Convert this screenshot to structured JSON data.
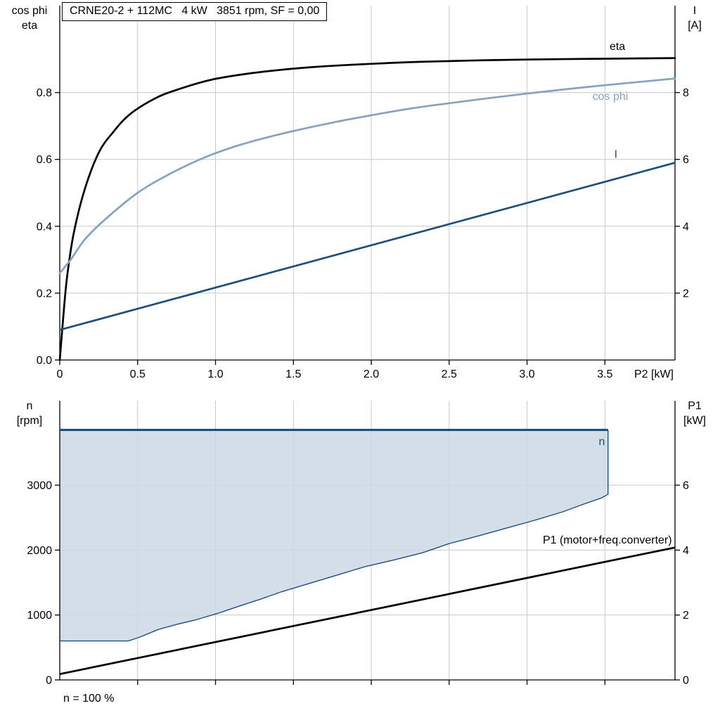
{
  "colors": {
    "black": "#000000",
    "dark_blue": "#1d4f7c",
    "light_blue": "#87a2be",
    "grid": "#c9c9c9",
    "area_fill": "#ccd8e4"
  },
  "chart_data": [
    {
      "type": "line",
      "title": "CRNE20-2 + 112MC   4 kW   3851 rpm, SF = 0,00",
      "x_axis": {
        "label": "P2 [kW]",
        "min": 0,
        "max": 3.95,
        "ticks": [
          0,
          0.5,
          1,
          1.5,
          2,
          2.5,
          3,
          3.5
        ],
        "tick_labels": [
          "0",
          "0.5",
          "1.0",
          "1.5",
          "2.0",
          "2.5",
          "3.0",
          "3.5"
        ]
      },
      "y_left": {
        "title_lines": [
          "cos phi",
          "eta"
        ],
        "min": 0,
        "max": 1.06,
        "ticks": [
          0,
          0.2,
          0.4,
          0.6,
          0.8
        ],
        "tick_labels": [
          "0.0",
          "0.2",
          "0.4",
          "0.6",
          "0.8"
        ]
      },
      "y_right": {
        "title_lines": [
          "I",
          "[A]"
        ],
        "min": 0,
        "max": 10.6,
        "ticks": [
          2,
          4,
          6,
          8
        ],
        "tick_labels": [
          "2",
          "4",
          "6",
          "8"
        ]
      },
      "series": [
        {
          "name": "eta",
          "display_label": "eta",
          "axis": "left",
          "color": "black",
          "width": 2.7,
          "smooth": true,
          "label_pos": [
            3.53,
            0.928
          ],
          "label_anchor": "start",
          "points": [
            [
              0,
              0
            ],
            [
              0.03,
              0.17
            ],
            [
              0.05,
              0.26
            ],
            [
              0.09,
              0.38
            ],
            [
              0.16,
              0.51
            ],
            [
              0.25,
              0.62
            ],
            [
              0.34,
              0.68
            ],
            [
              0.45,
              0.735
            ],
            [
              0.61,
              0.782
            ],
            [
              0.75,
              0.808
            ],
            [
              0.97,
              0.838
            ],
            [
              1.2,
              0.856
            ],
            [
              1.42,
              0.868
            ],
            [
              1.65,
              0.877
            ],
            [
              1.87,
              0.883
            ],
            [
              2.1,
              0.888
            ],
            [
              2.32,
              0.892
            ],
            [
              2.77,
              0.897
            ],
            [
              3.23,
              0.9
            ],
            [
              3.68,
              0.902
            ],
            [
              3.95,
              0.903
            ]
          ]
        },
        {
          "name": "cos phi",
          "display_label": "cos phi",
          "axis": "left",
          "color": "light_blue",
          "width": 2.7,
          "smooth": true,
          "label_pos": [
            3.42,
            0.778
          ],
          "label_anchor": "start",
          "points": [
            [
              0,
              0.26
            ],
            [
              0.07,
              0.3
            ],
            [
              0.16,
              0.36
            ],
            [
              0.29,
              0.42
            ],
            [
              0.5,
              0.5
            ],
            [
              0.7,
              0.555
            ],
            [
              0.9,
              0.6
            ],
            [
              1.1,
              0.635
            ],
            [
              1.3,
              0.662
            ],
            [
              1.5,
              0.685
            ],
            [
              1.75,
              0.71
            ],
            [
              2,
              0.732
            ],
            [
              2.25,
              0.752
            ],
            [
              2.5,
              0.768
            ],
            [
              2.75,
              0.783
            ],
            [
              3,
              0.797
            ],
            [
              3.25,
              0.81
            ],
            [
              3.5,
              0.822
            ],
            [
              3.75,
              0.833
            ],
            [
              3.95,
              0.842
            ]
          ]
        },
        {
          "name": "I",
          "display_label": "I",
          "axis": "right",
          "color": "dark_blue",
          "width": 2.7,
          "smooth": false,
          "label_pos": [
            3.56,
            6.05
          ],
          "label_anchor": "start",
          "points": [
            [
              0,
              0.9
            ],
            [
              3.95,
              5.9
            ]
          ]
        }
      ]
    },
    {
      "type": "line",
      "x_axis": {
        "label": "",
        "min": 0,
        "max": 3.95,
        "ticks": [
          0.5,
          1,
          1.5,
          2,
          2.5,
          3,
          3.5
        ],
        "tick_labels": []
      },
      "y_left": {
        "title_lines": [
          "n",
          "[rpm]"
        ],
        "min": 0,
        "max": 4300,
        "ticks": [
          0,
          1000,
          2000,
          3000
        ],
        "tick_labels": [
          "0",
          "1000",
          "2000",
          "3000"
        ]
      },
      "y_right": {
        "title_lines": [
          "P1",
          "[kW]"
        ],
        "min": 0,
        "max": 8.6,
        "ticks": [
          0,
          2,
          4,
          6
        ],
        "tick_labels": [
          "0",
          "2",
          "4",
          "6"
        ]
      },
      "fill_between": {
        "lower": "n min",
        "upper": "n",
        "fill": "area_fill"
      },
      "footnote": "n = 100 %",
      "series": [
        {
          "name": "n min",
          "display_label": "",
          "axis": "left",
          "color": "dark_blue",
          "width": 1.4,
          "smooth": false,
          "points": [
            [
              0,
              600
            ],
            [
              0.44,
              600
            ],
            [
              0.52,
              665
            ],
            [
              0.63,
              775
            ],
            [
              0.75,
              855
            ],
            [
              0.88,
              930
            ],
            [
              1.02,
              1030
            ],
            [
              1.15,
              1135
            ],
            [
              1.29,
              1245
            ],
            [
              1.42,
              1355
            ],
            [
              1.6,
              1485
            ],
            [
              1.78,
              1615
            ],
            [
              1.96,
              1745
            ],
            [
              2.14,
              1845
            ],
            [
              2.33,
              1960
            ],
            [
              2.5,
              2100
            ],
            [
              2.69,
              2220
            ],
            [
              2.87,
              2340
            ],
            [
              3.05,
              2460
            ],
            [
              3.23,
              2590
            ],
            [
              3.36,
              2705
            ],
            [
              3.48,
              2805
            ],
            [
              3.52,
              2860
            ],
            [
              3.52,
              3851
            ]
          ]
        },
        {
          "name": "n",
          "display_label": "n",
          "axis": "left",
          "color": "dark_blue",
          "width": 3.2,
          "smooth": false,
          "label_pos": [
            3.46,
            3620
          ],
          "label_anchor": "start",
          "points": [
            [
              0,
              3851
            ],
            [
              3.52,
              3851
            ]
          ]
        },
        {
          "name": "P1 (motor+freq.converter)",
          "display_label": "P1 (motor+freq.converter)",
          "axis": "right",
          "color": "black",
          "width": 2.7,
          "smooth": false,
          "label_pos": [
            3.93,
            4.2
          ],
          "label_anchor": "end",
          "points": [
            [
              0,
              0.18
            ],
            [
              3.95,
              4.08
            ]
          ]
        }
      ]
    }
  ]
}
